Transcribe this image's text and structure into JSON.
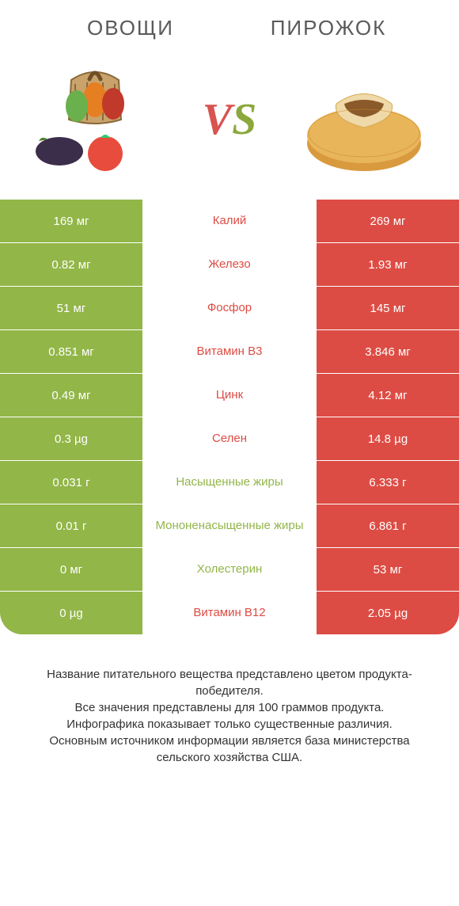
{
  "colors": {
    "green": "#92b648",
    "red": "#dd4c44",
    "text": "#5a5a5a"
  },
  "header": {
    "left": "ОВОЩИ",
    "right": "ПИРОЖОК"
  },
  "vs": {
    "v": "V",
    "s": "S"
  },
  "rows": [
    {
      "left": "169 мг",
      "mid": "Калий",
      "right": "269 мг",
      "winner": "right"
    },
    {
      "left": "0.82 мг",
      "mid": "Железо",
      "right": "1.93 мг",
      "winner": "right"
    },
    {
      "left": "51 мг",
      "mid": "Фосфор",
      "right": "145 мг",
      "winner": "right"
    },
    {
      "left": "0.851 мг",
      "mid": "Витамин B3",
      "right": "3.846 мг",
      "winner": "right"
    },
    {
      "left": "0.49 мг",
      "mid": "Цинк",
      "right": "4.12 мг",
      "winner": "right"
    },
    {
      "left": "0.3 µg",
      "mid": "Селен",
      "right": "14.8 µg",
      "winner": "right"
    },
    {
      "left": "0.031 г",
      "mid": "Насыщенные жиры",
      "right": "6.333 г",
      "winner": "left"
    },
    {
      "left": "0.01 г",
      "mid": "Мононенасыщенные жиры",
      "right": "6.861 г",
      "winner": "left"
    },
    {
      "left": "0 мг",
      "mid": "Холестерин",
      "right": "53 мг",
      "winner": "left"
    },
    {
      "left": "0 µg",
      "mid": "Витамин B12",
      "right": "2.05 µg",
      "winner": "right"
    }
  ],
  "footer": {
    "line1": "Название питательного вещества представлено цветом продукта-победителя.",
    "line2": "Все значения представлены для 100 граммов продукта.",
    "line3": "Инфографика показывает только существенные различия.",
    "line4": "Основным источником информации является база министерства сельского хозяйства США."
  }
}
